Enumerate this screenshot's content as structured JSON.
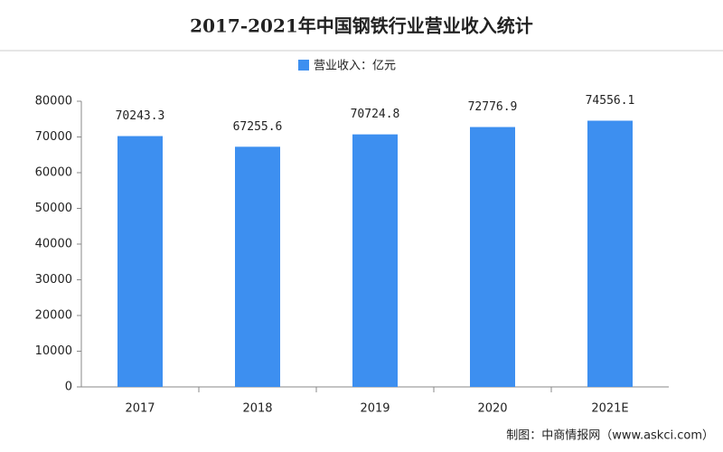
{
  "chart_data": {
    "type": "bar",
    "title": "2017-2021年中国钢铁行业营业收入统计",
    "series": [
      {
        "name": "营业收入：亿元",
        "color": "#3d8ff0",
        "values": [
          70243.3,
          67255.6,
          70724.8,
          72776.9,
          74556.1
        ]
      }
    ],
    "categories": [
      "2017",
      "2018",
      "2019",
      "2020",
      "2021E"
    ],
    "ylim": [
      0,
      80000
    ],
    "yticks": [
      0,
      10000,
      20000,
      30000,
      40000,
      50000,
      60000,
      70000,
      80000
    ],
    "grid": false,
    "source": "制图：中商情报网（www.askci.com）"
  }
}
